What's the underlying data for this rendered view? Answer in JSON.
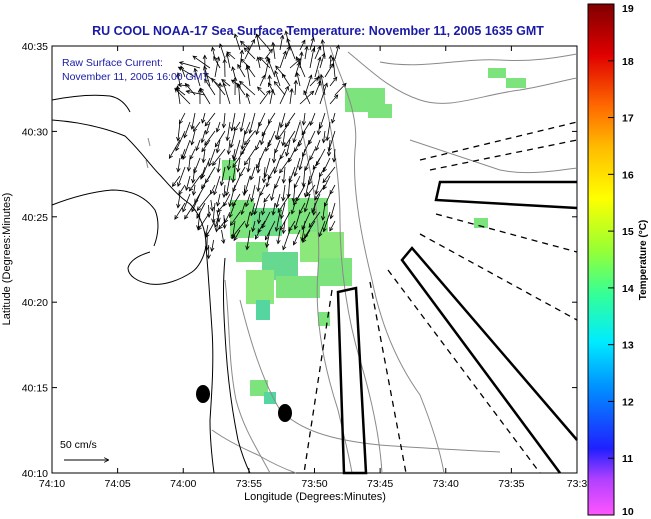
{
  "title": "RU COOL  NOAA-17  Sea Surface Temperature:  November 11, 2005 1635 GMT",
  "current_legend": {
    "line1": "Raw Surface Current:",
    "line2": "November 11, 2005 16:00 GMT"
  },
  "scale_label": "50 cm/s",
  "x_axis": {
    "label": "Longitude (Degrees:Minutes)",
    "ticks": [
      "74:10",
      "74:05",
      "74:00",
      "73:55",
      "73:50",
      "73:45",
      "73:40",
      "73:35",
      "73:3"
    ]
  },
  "y_axis": {
    "label": "Latitude (Degrees:Minutes)",
    "ticks": [
      "40:35",
      "40:30",
      "40:25",
      "40:20",
      "40:15",
      "40:10"
    ]
  },
  "colorbar": {
    "label": "Temperature (°C)",
    "ticks": [
      "19",
      "18",
      "17",
      "16",
      "15",
      "14",
      "13",
      "12",
      "11",
      "10"
    ],
    "range": [
      10,
      19
    ],
    "colors": [
      "#ff55ff",
      "#9933ff",
      "#0000ff",
      "#00a8ff",
      "#00f0ff",
      "#33ff99",
      "#88ff33",
      "#ffff00",
      "#ffaa00",
      "#ff4400",
      "#c00000",
      "#7a0000"
    ]
  },
  "colors": {
    "title": "#1a1aa6",
    "sst_patch": "#7de37d",
    "sst_patch_alt": "#55d6a0"
  }
}
